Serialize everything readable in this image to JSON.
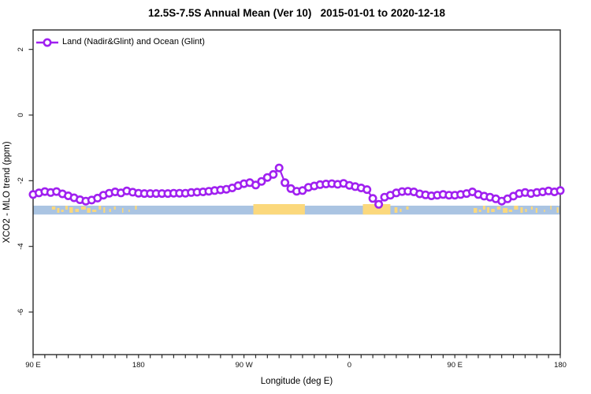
{
  "header": {
    "title": "12.5S-7.5S Annual Mean (Ver 10)   2015-01-01 to 2020-12-18"
  },
  "legend": {
    "label": "Land (Nadir&Glint) and Ocean (Glint)"
  },
  "axes": {
    "x_label": "Longitude (deg E)",
    "y_label": "XCO2 - MLO trend (ppm)",
    "x_tick_labels": [
      "90 E",
      "180",
      "90 W",
      "0",
      "90 E",
      "180"
    ],
    "y_tick_labels": [
      "2",
      "0",
      "-2",
      "-4",
      "-6"
    ]
  },
  "colors": {
    "series": "#A020F0",
    "ocean": "#AAC4E2",
    "land": "#FBD87C",
    "frame": "#2b2b2b",
    "text": "#111111"
  },
  "chart_data": {
    "type": "line",
    "title": "12.5S-7.5S Annual Mean (Ver 10)   2015-01-01 to 2020-12-18",
    "xlabel": "Longitude (deg E)",
    "ylabel": "XCO2 - MLO trend (ppm)",
    "xlim": [
      90,
      540
    ],
    "ylim": [
      -7.3,
      2.6
    ],
    "x_major_ticks": [
      90,
      180,
      270,
      360,
      450,
      540
    ],
    "x_minor_tick_step": 10,
    "y_ticks": [
      2,
      0,
      -2,
      -4,
      -6
    ],
    "grid": false,
    "legend_position": "top-left-inside",
    "marker": "open-circle",
    "x_start": 90,
    "x_step": 5,
    "series": [
      {
        "name": "Land (Nadir&Glint) and Ocean (Glint)",
        "values": [
          -2.42,
          -2.37,
          -2.33,
          -2.36,
          -2.33,
          -2.4,
          -2.46,
          -2.52,
          -2.58,
          -2.62,
          -2.59,
          -2.53,
          -2.44,
          -2.38,
          -2.34,
          -2.37,
          -2.31,
          -2.35,
          -2.38,
          -2.39,
          -2.39,
          -2.39,
          -2.39,
          -2.39,
          -2.38,
          -2.38,
          -2.38,
          -2.36,
          -2.35,
          -2.34,
          -2.32,
          -2.3,
          -2.28,
          -2.26,
          -2.22,
          -2.15,
          -2.09,
          -2.06,
          -2.13,
          -2.02,
          -1.9,
          -1.81,
          -1.61,
          -2.06,
          -2.24,
          -2.32,
          -2.3,
          -2.2,
          -2.16,
          -2.12,
          -2.1,
          -2.09,
          -2.11,
          -2.08,
          -2.14,
          -2.18,
          -2.22,
          -2.27,
          -2.54,
          -2.72,
          -2.5,
          -2.44,
          -2.37,
          -2.33,
          -2.32,
          -2.34,
          -2.4,
          -2.43,
          -2.46,
          -2.44,
          -2.42,
          -2.44,
          -2.44,
          -2.42,
          -2.39,
          -2.34,
          -2.42,
          -2.47,
          -2.5,
          -2.55,
          -2.62,
          -2.55,
          -2.47,
          -2.39,
          -2.36,
          -2.39,
          -2.36,
          -2.34,
          -2.31,
          -2.34,
          -2.3
        ]
      }
    ],
    "map_band": {
      "description": "latitude-strip map 12.5S-7.5S: ocean blue, land tan",
      "value_range": [
        -2.76,
        -3.03
      ],
      "ocean": [
        [
          90,
          540
        ]
      ],
      "land_solid": [
        [
          278,
          322
        ],
        [
          371.5,
          395
        ]
      ],
      "land_islands": [
        [
          106,
          109
        ],
        [
          110.5,
          112.5
        ],
        [
          114,
          116
        ],
        [
          117.5,
          119.5
        ],
        [
          121,
          124
        ],
        [
          126,
          129
        ],
        [
          131,
          135
        ],
        [
          136,
          139
        ],
        [
          140.5,
          144
        ],
        [
          146,
          148
        ],
        [
          150,
          151.5
        ],
        [
          155,
          156.5
        ],
        [
          159,
          160.5
        ],
        [
          166,
          167
        ],
        [
          171.5,
          172.5
        ],
        [
          177,
          178.5
        ],
        [
          398.5,
          401
        ],
        [
          403,
          404.5
        ],
        [
          408.5,
          410.5
        ],
        [
          466,
          469
        ],
        [
          470.5,
          472.5
        ],
        [
          474,
          476
        ],
        [
          477.5,
          479.5
        ],
        [
          481,
          484
        ],
        [
          486,
          489
        ],
        [
          491,
          495
        ],
        [
          496,
          499
        ],
        [
          500.5,
          504
        ],
        [
          506,
          508
        ],
        [
          510,
          511.5
        ],
        [
          515,
          516.5
        ],
        [
          519,
          520.5
        ],
        [
          526,
          527
        ],
        [
          531.5,
          532.5
        ],
        [
          537,
          538.5
        ]
      ]
    }
  }
}
